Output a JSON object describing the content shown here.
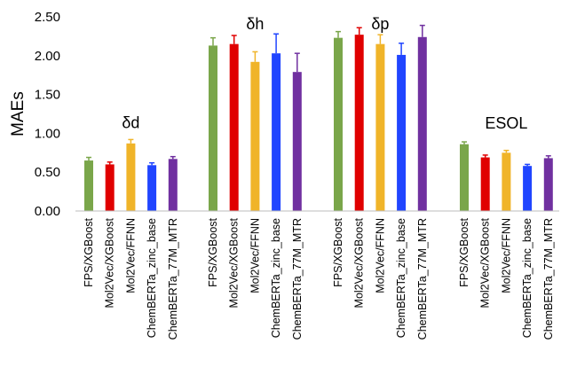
{
  "chart_data": {
    "type": "bar",
    "ylabel": "MAEs",
    "ylim": [
      0,
      2.5
    ],
    "yticks": [
      "0.00",
      "0.50",
      "1.00",
      "1.50",
      "2.00",
      "2.50"
    ],
    "grid": false,
    "categories": [
      "FPS/XGBoost",
      "Mol2Vec/XGBoost",
      "Mol2Vec/FFNN",
      "ChemBERTa_zinc_base",
      "ChemBERTa_77M_MTR"
    ],
    "colors": [
      "#7aa64a",
      "#e00000",
      "#f0b429",
      "#2045ff",
      "#7030a0"
    ],
    "groups": [
      {
        "name": "δd",
        "values": [
          0.65,
          0.6,
          0.87,
          0.59,
          0.67
        ],
        "errors": [
          0.04,
          0.03,
          0.05,
          0.03,
          0.03
        ]
      },
      {
        "name": "δh",
        "values": [
          2.13,
          2.15,
          1.92,
          2.03,
          1.79
        ],
        "errors": [
          0.1,
          0.11,
          0.13,
          0.25,
          0.24
        ]
      },
      {
        "name": "δp",
        "values": [
          2.23,
          2.27,
          2.15,
          2.01,
          2.24
        ],
        "errors": [
          0.08,
          0.09,
          0.12,
          0.15,
          0.15
        ]
      },
      {
        "name": "ESOL",
        "values": [
          0.86,
          0.69,
          0.75,
          0.58,
          0.68
        ],
        "errors": [
          0.03,
          0.03,
          0.03,
          0.02,
          0.03
        ]
      }
    ]
  }
}
